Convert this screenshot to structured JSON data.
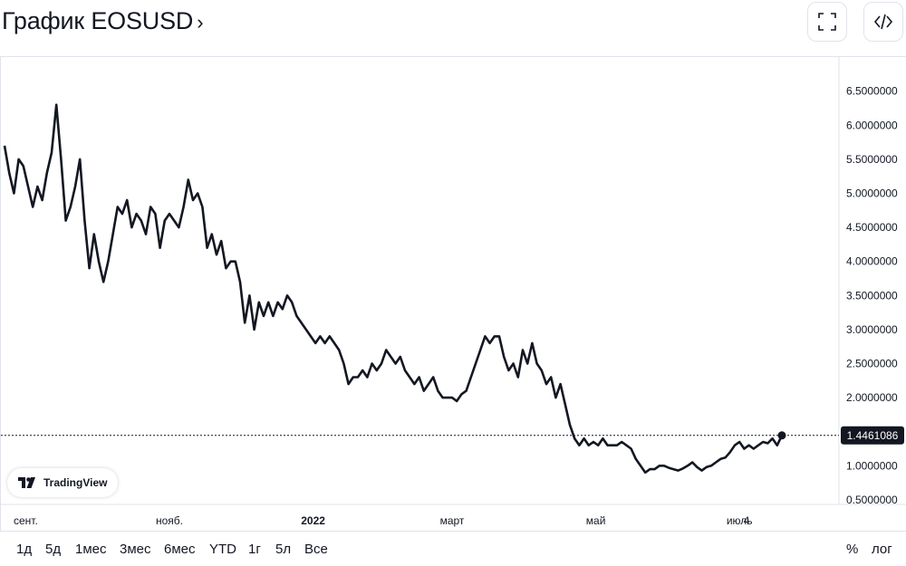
{
  "header": {
    "title": "График EOSUSD",
    "chevron": "›",
    "fullscreen_icon": "fullscreen-icon",
    "embed_icon": "code-icon"
  },
  "watermark": {
    "label": "TradingView",
    "icon": "tradingview-logo-icon"
  },
  "ranges": [
    "1д",
    "5д",
    "1мес",
    "3мес",
    "6мес",
    "YTD",
    "1г",
    "5л",
    "Все"
  ],
  "scale_options": {
    "percent": "%",
    "log": "лог"
  },
  "colors": {
    "line": "#131722",
    "price_label_bg": "#131722",
    "price_label_text": "#ffffff",
    "grid": "#e0e3eb"
  },
  "chart_data": {
    "type": "line",
    "title": "График EOSUSD",
    "last_value": 1.4461086,
    "last_value_label": "1.4461086",
    "ylim": [
      0.35,
      6.9
    ],
    "y_ticks": [
      {
        "v": 6.5,
        "label": "6.5000000"
      },
      {
        "v": 6.0,
        "label": "6.0000000"
      },
      {
        "v": 5.5,
        "label": "5.5000000"
      },
      {
        "v": 5.0,
        "label": "5.0000000"
      },
      {
        "v": 4.5,
        "label": "4.5000000"
      },
      {
        "v": 4.0,
        "label": "4.0000000"
      },
      {
        "v": 3.5,
        "label": "3.5000000"
      },
      {
        "v": 3.0,
        "label": "3.0000000"
      },
      {
        "v": 2.5,
        "label": "2.5000000"
      },
      {
        "v": 2.0,
        "label": "2.0000000"
      },
      {
        "v": 1.0,
        "label": "1.0000000"
      },
      {
        "v": 0.5,
        "label": "0.5000000"
      }
    ],
    "x_ticks": [
      {
        "date": "2021-09-01",
        "label": "сент.",
        "bold": false
      },
      {
        "date": "2021-11-01",
        "label": "нояб.",
        "bold": false
      },
      {
        "date": "2022-01-01",
        "label": "2022",
        "bold": true
      },
      {
        "date": "2022-03-01",
        "label": "март",
        "bold": false
      },
      {
        "date": "2022-05-01",
        "label": "май",
        "bold": false
      },
      {
        "date": "2022-07-01",
        "label": "июль",
        "bold": false
      },
      {
        "date": "2022-07-04",
        "label": "4",
        "bold": false
      }
    ],
    "xlim": [
      "2021-08-23",
      "2022-07-29"
    ],
    "series": [
      {
        "values": [
          [
            "2021-08-23",
            5.7
          ],
          [
            "2021-08-25",
            5.3
          ],
          [
            "2021-08-27",
            5.0
          ],
          [
            "2021-08-29",
            5.5
          ],
          [
            "2021-08-31",
            5.4
          ],
          [
            "2021-09-02",
            5.1
          ],
          [
            "2021-09-04",
            4.8
          ],
          [
            "2021-09-06",
            5.1
          ],
          [
            "2021-09-08",
            4.9
          ],
          [
            "2021-09-10",
            5.3
          ],
          [
            "2021-09-12",
            5.6
          ],
          [
            "2021-09-14",
            6.3
          ],
          [
            "2021-09-16",
            5.5
          ],
          [
            "2021-09-18",
            4.6
          ],
          [
            "2021-09-20",
            4.8
          ],
          [
            "2021-09-22",
            5.1
          ],
          [
            "2021-09-24",
            5.5
          ],
          [
            "2021-09-26",
            4.6
          ],
          [
            "2021-09-28",
            3.9
          ],
          [
            "2021-09-30",
            4.4
          ],
          [
            "2021-10-02",
            4.0
          ],
          [
            "2021-10-04",
            3.7
          ],
          [
            "2021-10-06",
            4.0
          ],
          [
            "2021-10-08",
            4.4
          ],
          [
            "2021-10-10",
            4.8
          ],
          [
            "2021-10-12",
            4.7
          ],
          [
            "2021-10-14",
            4.9
          ],
          [
            "2021-10-16",
            4.5
          ],
          [
            "2021-10-18",
            4.7
          ],
          [
            "2021-10-20",
            4.6
          ],
          [
            "2021-10-22",
            4.4
          ],
          [
            "2021-10-24",
            4.8
          ],
          [
            "2021-10-26",
            4.7
          ],
          [
            "2021-10-28",
            4.2
          ],
          [
            "2021-10-30",
            4.6
          ],
          [
            "2021-11-01",
            4.7
          ],
          [
            "2021-11-03",
            4.6
          ],
          [
            "2021-11-05",
            4.5
          ],
          [
            "2021-11-07",
            4.8
          ],
          [
            "2021-11-09",
            5.2
          ],
          [
            "2021-11-11",
            4.9
          ],
          [
            "2021-11-13",
            5.0
          ],
          [
            "2021-11-15",
            4.8
          ],
          [
            "2021-11-17",
            4.2
          ],
          [
            "2021-11-19",
            4.4
          ],
          [
            "2021-11-21",
            4.1
          ],
          [
            "2021-11-23",
            4.3
          ],
          [
            "2021-11-25",
            3.9
          ],
          [
            "2021-11-27",
            4.0
          ],
          [
            "2021-11-29",
            4.0
          ],
          [
            "2021-12-01",
            3.7
          ],
          [
            "2021-12-03",
            3.1
          ],
          [
            "2021-12-05",
            3.5
          ],
          [
            "2021-12-07",
            3.0
          ],
          [
            "2021-12-09",
            3.4
          ],
          [
            "2021-12-11",
            3.2
          ],
          [
            "2021-12-13",
            3.4
          ],
          [
            "2021-12-15",
            3.2
          ],
          [
            "2021-12-17",
            3.4
          ],
          [
            "2021-12-19",
            3.3
          ],
          [
            "2021-12-21",
            3.5
          ],
          [
            "2021-12-23",
            3.4
          ],
          [
            "2021-12-25",
            3.2
          ],
          [
            "2021-12-27",
            3.1
          ],
          [
            "2021-12-29",
            3.0
          ],
          [
            "2021-12-31",
            2.9
          ],
          [
            "2022-01-02",
            2.8
          ],
          [
            "2022-01-04",
            2.9
          ],
          [
            "2022-01-06",
            2.8
          ],
          [
            "2022-01-08",
            2.9
          ],
          [
            "2022-01-10",
            2.8
          ],
          [
            "2022-01-12",
            2.7
          ],
          [
            "2022-01-14",
            2.5
          ],
          [
            "2022-01-16",
            2.2
          ],
          [
            "2022-01-18",
            2.3
          ],
          [
            "2022-01-20",
            2.3
          ],
          [
            "2022-01-22",
            2.4
          ],
          [
            "2022-01-24",
            2.3
          ],
          [
            "2022-01-26",
            2.5
          ],
          [
            "2022-01-28",
            2.4
          ],
          [
            "2022-01-30",
            2.5
          ],
          [
            "2022-02-01",
            2.7
          ],
          [
            "2022-02-03",
            2.6
          ],
          [
            "2022-02-05",
            2.5
          ],
          [
            "2022-02-07",
            2.6
          ],
          [
            "2022-02-09",
            2.4
          ],
          [
            "2022-02-11",
            2.3
          ],
          [
            "2022-02-13",
            2.2
          ],
          [
            "2022-02-15",
            2.3
          ],
          [
            "2022-02-17",
            2.1
          ],
          [
            "2022-02-19",
            2.2
          ],
          [
            "2022-02-21",
            2.3
          ],
          [
            "2022-02-23",
            2.1
          ],
          [
            "2022-02-25",
            2.0
          ],
          [
            "2022-02-27",
            2.0
          ],
          [
            "2022-03-01",
            2.0
          ],
          [
            "2022-03-03",
            1.95
          ],
          [
            "2022-03-05",
            2.05
          ],
          [
            "2022-03-07",
            2.1
          ],
          [
            "2022-03-09",
            2.3
          ],
          [
            "2022-03-11",
            2.5
          ],
          [
            "2022-03-13",
            2.7
          ],
          [
            "2022-03-15",
            2.9
          ],
          [
            "2022-03-17",
            2.8
          ],
          [
            "2022-03-19",
            2.9
          ],
          [
            "2022-03-21",
            2.9
          ],
          [
            "2022-03-23",
            2.6
          ],
          [
            "2022-03-25",
            2.4
          ],
          [
            "2022-03-27",
            2.5
          ],
          [
            "2022-03-29",
            2.3
          ],
          [
            "2022-03-31",
            2.7
          ],
          [
            "2022-04-02",
            2.5
          ],
          [
            "2022-04-04",
            2.8
          ],
          [
            "2022-04-06",
            2.5
          ],
          [
            "2022-04-08",
            2.4
          ],
          [
            "2022-04-10",
            2.2
          ],
          [
            "2022-04-12",
            2.3
          ],
          [
            "2022-04-14",
            2.0
          ],
          [
            "2022-04-16",
            2.2
          ],
          [
            "2022-04-18",
            1.9
          ],
          [
            "2022-04-20",
            1.6
          ],
          [
            "2022-04-22",
            1.4
          ],
          [
            "2022-04-24",
            1.3
          ],
          [
            "2022-04-26",
            1.4
          ],
          [
            "2022-04-28",
            1.3
          ],
          [
            "2022-04-30",
            1.35
          ],
          [
            "2022-05-02",
            1.3
          ],
          [
            "2022-05-04",
            1.4
          ],
          [
            "2022-05-06",
            1.3
          ],
          [
            "2022-05-08",
            1.3
          ],
          [
            "2022-05-10",
            1.3
          ],
          [
            "2022-05-12",
            1.35
          ],
          [
            "2022-05-14",
            1.3
          ],
          [
            "2022-05-16",
            1.25
          ],
          [
            "2022-05-18",
            1.1
          ],
          [
            "2022-05-20",
            1.0
          ],
          [
            "2022-05-22",
            0.9
          ],
          [
            "2022-05-24",
            0.95
          ],
          [
            "2022-05-26",
            0.95
          ],
          [
            "2022-05-28",
            1.0
          ],
          [
            "2022-05-30",
            1.0
          ],
          [
            "2022-06-01",
            0.97
          ],
          [
            "2022-06-03",
            0.95
          ],
          [
            "2022-06-05",
            0.93
          ],
          [
            "2022-06-07",
            0.96
          ],
          [
            "2022-06-09",
            1.0
          ],
          [
            "2022-06-11",
            1.05
          ],
          [
            "2022-06-13",
            0.98
          ],
          [
            "2022-06-15",
            0.93
          ],
          [
            "2022-06-17",
            0.98
          ],
          [
            "2022-06-19",
            1.0
          ],
          [
            "2022-06-21",
            1.05
          ],
          [
            "2022-06-23",
            1.1
          ],
          [
            "2022-06-25",
            1.12
          ],
          [
            "2022-06-27",
            1.2
          ],
          [
            "2022-06-29",
            1.3
          ],
          [
            "2022-07-01",
            1.35
          ],
          [
            "2022-07-03",
            1.25
          ],
          [
            "2022-07-05",
            1.3
          ],
          [
            "2022-07-07",
            1.25
          ],
          [
            "2022-07-09",
            1.3
          ],
          [
            "2022-07-11",
            1.35
          ],
          [
            "2022-07-13",
            1.33
          ],
          [
            "2022-07-15",
            1.4
          ],
          [
            "2022-07-17",
            1.3
          ],
          [
            "2022-07-19",
            1.446
          ]
        ]
      }
    ]
  }
}
